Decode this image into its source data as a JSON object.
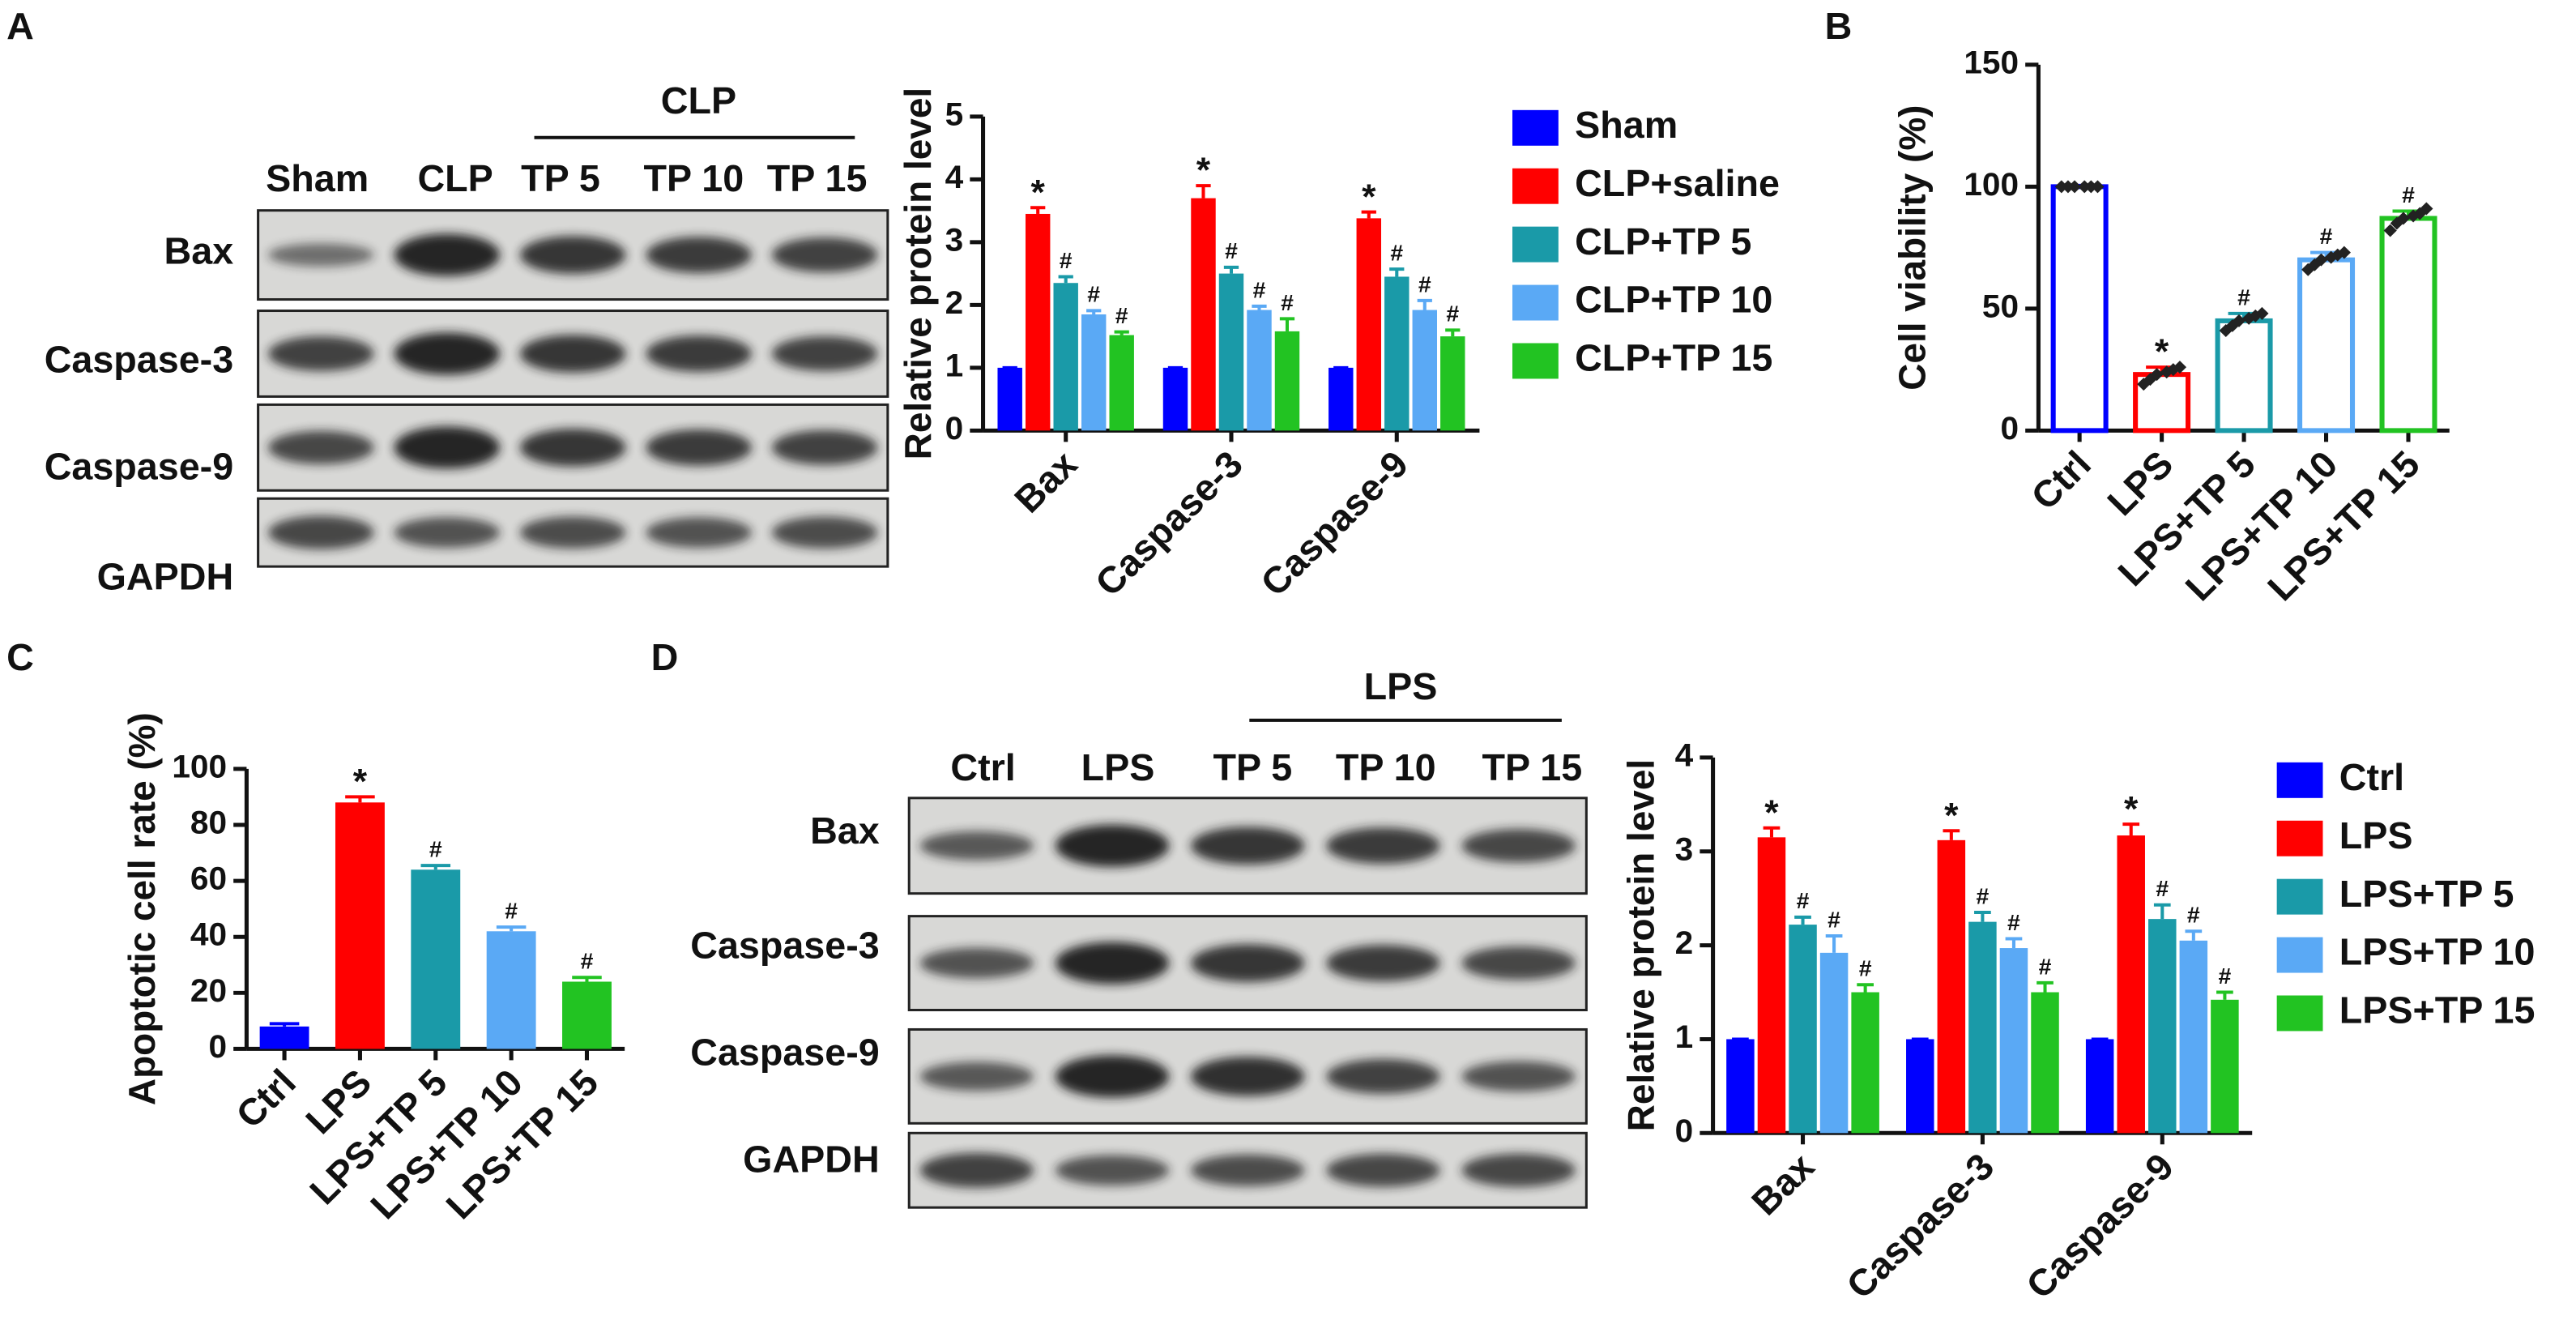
{
  "panel_labels": [
    "A",
    "B",
    "C",
    "D"
  ],
  "blots": [
    {
      "group": "CLP",
      "lanes": [
        "Sham",
        "CLP",
        "TP 5",
        "TP 10",
        "TP 15"
      ],
      "rows": [
        "Bax",
        "Caspase-3",
        "Caspase-9",
        "GAPDH"
      ]
    },
    {
      "group": "LPS",
      "lanes": [
        "Ctrl",
        "LPS",
        "TP 5",
        "TP 10",
        "TP 15"
      ],
      "rows": [
        "Bax",
        "Caspase-3",
        "Caspase-9",
        "GAPDH"
      ]
    }
  ],
  "chart_data": [
    {
      "type": "bar",
      "y_label": "Relative protein level",
      "categories": [
        "Bax",
        "Caspase-3",
        "Caspase-9"
      ],
      "series": [
        {
          "name": "Sham",
          "color": "#0000ff",
          "values": [
            1,
            1,
            1
          ],
          "errors": [
            0,
            0,
            0
          ]
        },
        {
          "name": "CLP+saline",
          "color": "#ff0000",
          "values": [
            3.45,
            3.7,
            3.38
          ],
          "errors": [
            0.1,
            0.2,
            0.1
          ],
          "annotations": [
            "*",
            "*",
            "*"
          ]
        },
        {
          "name": "CLP+TP 5",
          "color": "#1a9aa8",
          "values": [
            2.35,
            2.5,
            2.45
          ],
          "errors": [
            0.1,
            0.1,
            0.12
          ],
          "annotations": [
            "#",
            "#",
            "#"
          ]
        },
        {
          "name": "CLP+TP 10",
          "color": "#5aa9f5",
          "values": [
            1.85,
            1.92,
            1.92
          ],
          "errors": [
            0.06,
            0.06,
            0.15
          ],
          "annotations": [
            "#",
            "#",
            "#"
          ]
        },
        {
          "name": "CLP+TP 15",
          "color": "#22c322",
          "values": [
            1.52,
            1.58,
            1.5
          ],
          "errors": [
            0.05,
            0.2,
            0.1
          ],
          "annotations": [
            "#",
            "#",
            "#"
          ]
        }
      ],
      "ylim": [
        0,
        5
      ],
      "yticks": [
        0,
        1,
        2,
        3,
        4,
        5
      ],
      "legend": "right"
    },
    {
      "type": "bar",
      "y_label": "Cell viability (%)",
      "hollow": true,
      "categories": [
        "Ctrl",
        "LPS",
        "LPS+TP 5",
        "LPS+TP 10",
        "LPS+TP 15"
      ],
      "values": [
        100,
        23,
        45,
        70,
        87
      ],
      "errors": [
        0.5,
        3,
        3,
        3,
        3
      ],
      "colors": [
        "#0000ff",
        "#ff0000",
        "#1a9aa8",
        "#5aa9f5",
        "#22c322"
      ],
      "annotations": [
        null,
        "*",
        "#",
        "#",
        "#"
      ],
      "points": [
        [
          100,
          100,
          100,
          100,
          100,
          100
        ],
        [
          19,
          21,
          23,
          24,
          25,
          26
        ],
        [
          41,
          43,
          45,
          46,
          47,
          48
        ],
        [
          66,
          68,
          70,
          71,
          72,
          73
        ],
        [
          82,
          85,
          87,
          88,
          89,
          91
        ]
      ],
      "ylim": [
        0,
        150
      ],
      "yticks": [
        0,
        50,
        100,
        150
      ]
    },
    {
      "type": "bar",
      "y_label": "Apoptotic cell rate (%)",
      "categories": [
        "Ctrl",
        "LPS",
        "LPS+TP 5",
        "LPS+TP 10",
        "LPS+TP 15"
      ],
      "values": [
        8,
        88,
        64,
        42,
        24
      ],
      "errors": [
        1,
        2,
        1.5,
        1.5,
        1.5
      ],
      "colors": [
        "#0000ff",
        "#ff0000",
        "#1a9aa8",
        "#5aa9f5",
        "#22c322"
      ],
      "annotations": [
        null,
        "*",
        "#",
        "#",
        "#"
      ],
      "ylim": [
        0,
        100
      ],
      "yticks": [
        0,
        20,
        40,
        60,
        80,
        100
      ]
    },
    {
      "type": "bar",
      "y_label": "Relative protein level",
      "categories": [
        "Bax",
        "Caspase-3",
        "Caspase-9"
      ],
      "series": [
        {
          "name": "Ctrl",
          "color": "#0000ff",
          "values": [
            1,
            1,
            1
          ],
          "errors": [
            0,
            0,
            0
          ]
        },
        {
          "name": "LPS",
          "color": "#ff0000",
          "values": [
            3.15,
            3.12,
            3.17
          ],
          "errors": [
            0.1,
            0.1,
            0.12
          ],
          "annotations": [
            "*",
            "*",
            "*"
          ]
        },
        {
          "name": "LPS+TP 5",
          "color": "#1a9aa8",
          "values": [
            2.22,
            2.25,
            2.28
          ],
          "errors": [
            0.08,
            0.1,
            0.15
          ],
          "annotations": [
            "#",
            "#",
            "#"
          ]
        },
        {
          "name": "LPS+TP 10",
          "color": "#5aa9f5",
          "values": [
            1.92,
            1.97,
            2.05
          ],
          "errors": [
            0.18,
            0.1,
            0.1
          ],
          "annotations": [
            "#",
            "#",
            "#"
          ]
        },
        {
          "name": "LPS+TP 15",
          "color": "#22c322",
          "values": [
            1.5,
            1.5,
            1.42
          ],
          "errors": [
            0.08,
            0.1,
            0.08
          ],
          "annotations": [
            "#",
            "#",
            "#"
          ]
        }
      ],
      "ylim": [
        0,
        4
      ],
      "yticks": [
        0,
        1,
        2,
        3,
        4
      ],
      "legend": "right"
    }
  ]
}
